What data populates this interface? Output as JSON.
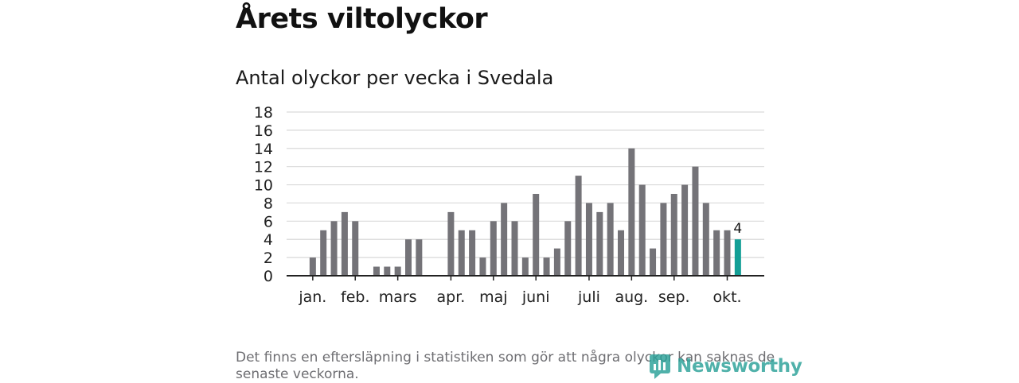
{
  "header": {
    "title": "Årets viltolyckor",
    "subtitle": "Antal olyckor per vecka i Svedala"
  },
  "chart_data": {
    "type": "bar",
    "title": "Antal olyckor per vecka i Svedala",
    "xlabel": "",
    "ylabel": "",
    "ylim": [
      0,
      18
    ],
    "yticks": [
      0,
      2,
      4,
      6,
      8,
      10,
      12,
      14,
      16,
      18
    ],
    "grid": true,
    "weeks": [
      1,
      2,
      3,
      4,
      5,
      6,
      7,
      8,
      9,
      10,
      11,
      12,
      13,
      14,
      15,
      16,
      17,
      18,
      19,
      20,
      21,
      22,
      23,
      24,
      25,
      26,
      27,
      28,
      29,
      30,
      31,
      32,
      33,
      34,
      35,
      36,
      37,
      38,
      39,
      40,
      41,
      42
    ],
    "values": [
      0,
      2,
      5,
      6,
      7,
      6,
      0,
      1,
      1,
      1,
      4,
      4,
      0,
      0,
      7,
      5,
      5,
      2,
      6,
      8,
      6,
      2,
      9,
      2,
      3,
      6,
      11,
      8,
      7,
      8,
      5,
      14,
      10,
      3,
      8,
      9,
      10,
      12,
      8,
      5,
      5,
      4
    ],
    "month_labels": [
      {
        "label": "jan.",
        "week": 2
      },
      {
        "label": "feb.",
        "week": 6
      },
      {
        "label": "mars",
        "week": 10
      },
      {
        "label": "apr.",
        "week": 15
      },
      {
        "label": "maj",
        "week": 19
      },
      {
        "label": "juni",
        "week": 23
      },
      {
        "label": "juli",
        "week": 28
      },
      {
        "label": "aug.",
        "week": 32
      },
      {
        "label": "sep.",
        "week": 36
      },
      {
        "label": "okt.",
        "week": 41
      }
    ],
    "highlight_week": 42,
    "highlight_label": "4",
    "bar_color": "#747378",
    "highlight_color": "#139f96",
    "grid_color": "#d9d9d9",
    "axis_color": "#222222"
  },
  "footer": {
    "note": "Det finns en eftersläpning i statistiken som gör att några olyckor kan saknas de senaste veckorna.",
    "brand": "Newsworthy",
    "brand_icon": "newsworthy-logo-icon"
  }
}
